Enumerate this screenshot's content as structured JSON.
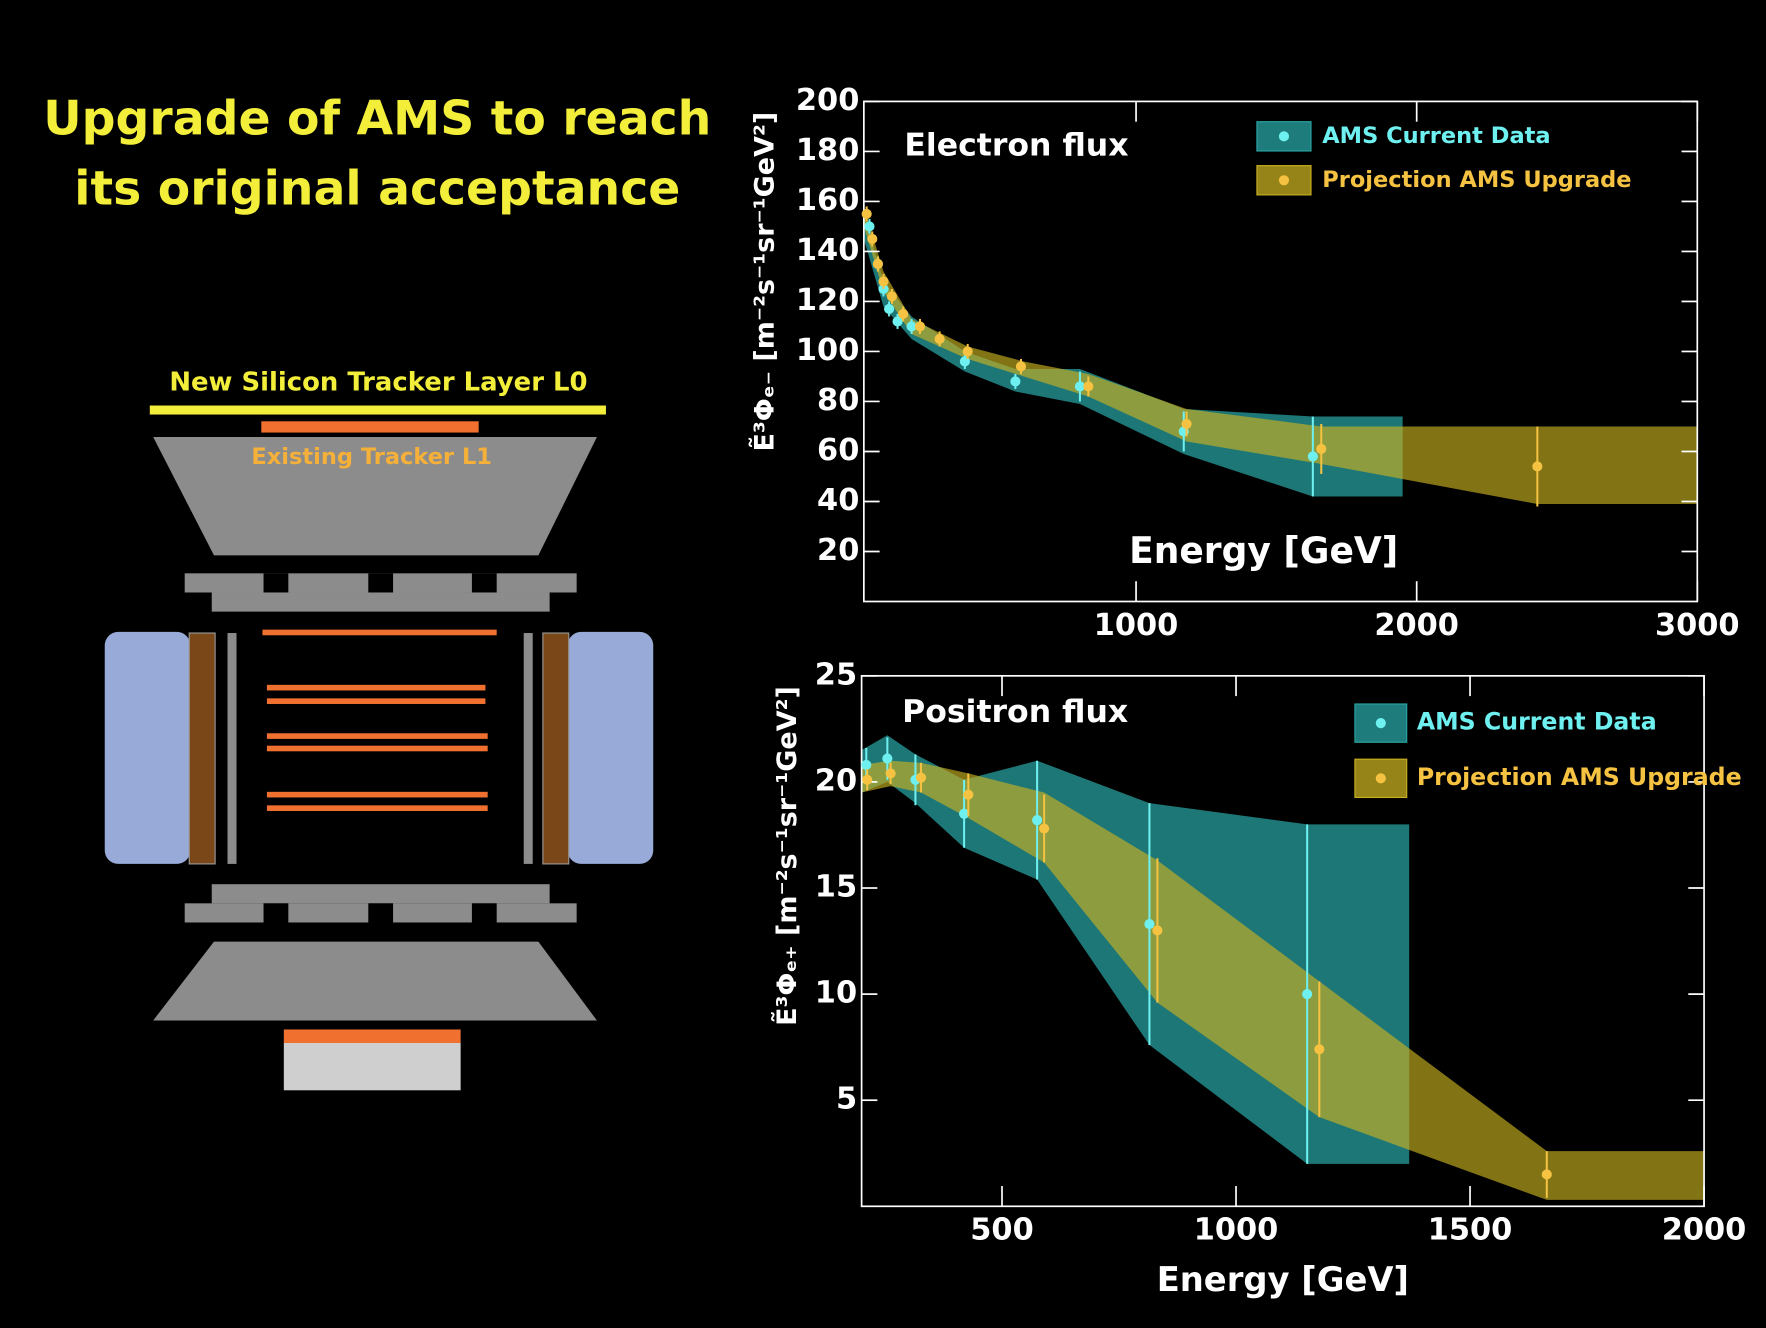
{
  "title": [
    "Upgrade of AMS to reach",
    "its original acceptance"
  ],
  "diagram": {
    "labels": [
      "New Silicon Tracker Layer L0",
      "Existing Tracker L1"
    ]
  },
  "chart_data": [
    {
      "type": "scatter",
      "title": "Electron flux",
      "x_label": "Energy [GeV]",
      "y_label": "Ẽ³Φₑ₋ [m⁻²s⁻¹sr⁻¹GeV²]",
      "xlim": [
        30,
        3000
      ],
      "ylim": [
        0,
        200
      ],
      "xticks": [
        1000,
        2000,
        3000
      ],
      "yticks": [
        20,
        40,
        60,
        80,
        100,
        120,
        140,
        160,
        180,
        200
      ],
      "legend": "top-right",
      "series": [
        {
          "name": "AMS Current Data",
          "color": "#6ff0f0",
          "band_color": "#2aa5a5",
          "x": [
            50,
            80,
            100,
            120,
            150,
            200,
            390,
            570,
            800,
            1170,
            1630
          ],
          "values": [
            150,
            135,
            125,
            117,
            112,
            110,
            96,
            88,
            86,
            68,
            58
          ],
          "errors": [
            3,
            3,
            3,
            3,
            3,
            3,
            3,
            3,
            6,
            8,
            16
          ],
          "band": {
            "x": [
              30,
              100,
              200,
              390,
              570,
              800,
              1170,
              1630,
              1950
            ],
            "lower": [
              145,
              118,
              105,
              92,
              84,
              79,
              59,
              42,
              42
            ],
            "upper": [
              155,
              128,
              114,
              100,
              93,
              93,
              77,
              74,
              74
            ]
          }
        },
        {
          "name": "Projection AMS Upgrade",
          "color": "#f5c242",
          "band_color": "#c8b020",
          "x": [
            40,
            60,
            80,
            100,
            130,
            170,
            230,
            300,
            400,
            590,
            830,
            1180,
            1660,
            2430
          ],
          "values": [
            155,
            145,
            135,
            128,
            122,
            115,
            110,
            105,
            100,
            94,
            86,
            71,
            61,
            54
          ],
          "errors": [
            3,
            3,
            3,
            3,
            3,
            3,
            3,
            3,
            3,
            3,
            4,
            5,
            10,
            16
          ],
          "band": {
            "x": [
              30,
              100,
              200,
              400,
              600,
              830,
              1180,
              1660,
              2430,
              3000
            ],
            "lower": [
              150,
              124,
              107,
              97,
              90,
              82,
              64,
              55,
              39,
              39
            ],
            "upper": [
              158,
              132,
              113,
              102,
              96,
              91,
              77,
              70,
              70,
              70
            ]
          }
        }
      ]
    },
    {
      "type": "scatter",
      "title": "Positron flux",
      "x_label": "Energy [GeV]",
      "y_label": "Ẽ³Φₑ₊ [m⁻²s⁻¹sr⁻¹GeV²]",
      "xlim": [
        200,
        2000
      ],
      "ylim": [
        0,
        25
      ],
      "xticks": [
        500,
        1000,
        1500,
        2000
      ],
      "yticks": [
        5,
        10,
        15,
        20,
        25
      ],
      "legend": "top-right",
      "series": [
        {
          "name": "AMS Current Data",
          "color": "#6ff0f0",
          "band_color": "#2aa5a5",
          "x": [
            210,
            255,
            315,
            419,
            575,
            815,
            1152
          ],
          "values": [
            20.8,
            21.1,
            20.1,
            18.5,
            18.2,
            13.3,
            10.0
          ],
          "errors": [
            0.8,
            1.0,
            1.2,
            1.6,
            2.8,
            5.7,
            8.0
          ],
          "band": {
            "x": [
              200,
              255,
              315,
              419,
              575,
              815,
              1152,
              1370
            ],
            "lower": [
              19.5,
              20.0,
              19.0,
              16.9,
              15.4,
              7.6,
              2.0,
              2.0
            ],
            "upper": [
              21.5,
              22.2,
              21.3,
              20.1,
              21.0,
              19.0,
              18.0,
              18.0
            ]
          }
        },
        {
          "name": "Projection AMS Upgrade",
          "color": "#f5c242",
          "band_color": "#c8b020",
          "x": [
            212,
            262,
            327,
            428,
            590,
            832,
            1178,
            1664
          ],
          "values": [
            20.1,
            20.4,
            20.2,
            19.4,
            17.8,
            13.0,
            7.4,
            1.5
          ],
          "errors": [
            0.5,
            0.5,
            0.7,
            1.0,
            1.6,
            3.4,
            3.2,
            1.1
          ],
          "band": {
            "x": [
              200,
              262,
              327,
              428,
              590,
              832,
              1178,
              1664,
              2000
            ],
            "lower": [
              19.5,
              19.8,
              19.5,
              18.3,
              16.2,
              9.6,
              4.2,
              0.3,
              0.3
            ],
            "upper": [
              20.8,
              21.0,
              20.9,
              20.4,
              19.5,
              16.3,
              10.6,
              2.6,
              2.6
            ]
          }
        }
      ]
    }
  ]
}
